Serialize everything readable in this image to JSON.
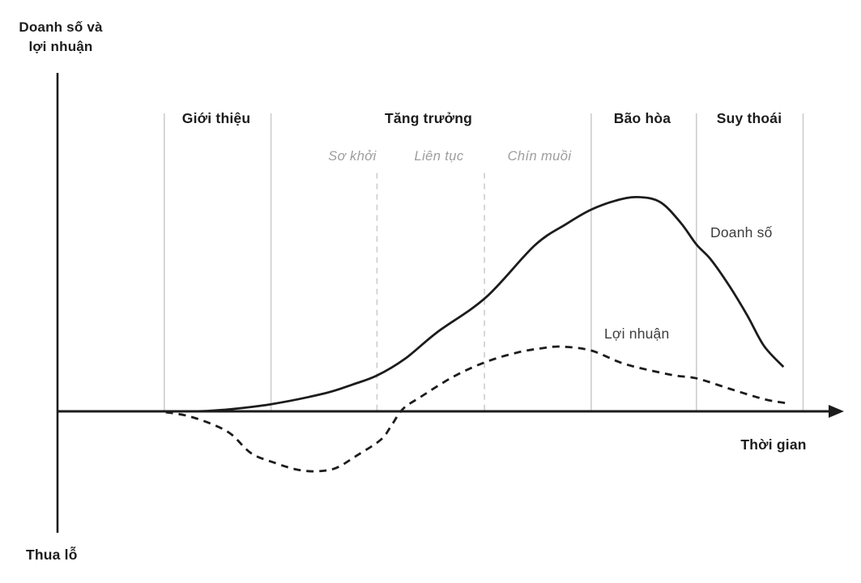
{
  "labels": {
    "y_axis_line1": "Doanh số và",
    "y_axis_line2": "lợi nhuận",
    "loss_label": "Thua lỗ"
  },
  "colors": {
    "text": "#1c1c1c",
    "muted_text": "#9d9d9d",
    "divider": "#cdcdcd",
    "axis": "#1c1c1c",
    "curve": "#1c1c1c",
    "background": "#ffffff"
  },
  "chart_data": {
    "type": "line",
    "title": "",
    "xlabel": "Thời gian",
    "ylabel": "Doanh số và lợi nhuận",
    "below_axis_label": "Thua lỗ",
    "axis": {
      "x_range": [
        0,
        100
      ],
      "y_range": [
        -41,
        114
      ],
      "zero_line": 0,
      "grid": false,
      "numeric_ticks": false
    },
    "legend": {
      "position": "inline-curve-labels"
    },
    "phases": [
      {
        "label": "Giới thiệu",
        "t_start": 13.6,
        "t_end": 27.2
      },
      {
        "label": "Tăng trưởng",
        "t_start": 27.2,
        "t_end": 68.0,
        "sub_phases": [
          {
            "label": "Sơ khởi",
            "t_start": 27.2,
            "t_end": 40.7
          },
          {
            "label": "Liên tục",
            "t_start": 40.7,
            "t_end": 54.4
          },
          {
            "label": "Chín muồi",
            "t_start": 54.4,
            "t_end": 68.0
          }
        ]
      },
      {
        "label": "Bão hòa",
        "t_start": 68.0,
        "t_end": 81.4
      },
      {
        "label": "Suy thoái",
        "t_start": 81.4,
        "t_end": 95.0
      }
    ],
    "dividers": {
      "solid_t": [
        13.6,
        27.2,
        68.0,
        81.4,
        95.0
      ],
      "dashed_t": [
        40.7,
        54.4
      ],
      "top_v": {
        "solid": 100,
        "dashed": 80
      }
    },
    "series": [
      {
        "name": "Doanh số",
        "style": "solid",
        "points": [
          [
            13.8,
            0
          ],
          [
            17.4,
            0
          ],
          [
            21.1,
            0.5
          ],
          [
            27.2,
            2.4
          ],
          [
            34.0,
            6.0
          ],
          [
            37.6,
            9.0
          ],
          [
            40.7,
            12.0
          ],
          [
            44.3,
            17.7
          ],
          [
            48.4,
            26.6
          ],
          [
            54.6,
            38.3
          ],
          [
            60.8,
            55.7
          ],
          [
            64.9,
            63.0
          ],
          [
            68.0,
            67.7
          ],
          [
            71.1,
            70.7
          ],
          [
            73.9,
            71.9
          ],
          [
            76.8,
            70.2
          ],
          [
            79.4,
            63.3
          ],
          [
            81.4,
            56.0
          ],
          [
            83.2,
            51.1
          ],
          [
            85.6,
            42.1
          ],
          [
            87.9,
            32.1
          ],
          [
            90.0,
            22.0
          ],
          [
            92.5,
            14.9
          ]
        ]
      },
      {
        "name": "Lợi nhuận",
        "style": "dashed",
        "points": [
          [
            13.8,
            -0.3
          ],
          [
            16.4,
            -1.4
          ],
          [
            19.5,
            -4.1
          ],
          [
            22.1,
            -7.6
          ],
          [
            24.7,
            -14.1
          ],
          [
            27.8,
            -17.4
          ],
          [
            30.6,
            -19.6
          ],
          [
            33.1,
            -20.1
          ],
          [
            35.5,
            -19.0
          ],
          [
            38.1,
            -14.9
          ],
          [
            41.2,
            -9.5
          ],
          [
            42.6,
            -4.5
          ],
          [
            44.0,
            0.8
          ],
          [
            46.3,
            4.9
          ],
          [
            50.5,
            11.7
          ],
          [
            54.6,
            16.6
          ],
          [
            58.7,
            19.8
          ],
          [
            61.8,
            21.2
          ],
          [
            64.2,
            21.7
          ],
          [
            68.0,
            20.4
          ],
          [
            72.4,
            15.8
          ],
          [
            78.3,
            12.2
          ],
          [
            81.4,
            11.1
          ],
          [
            85.6,
            7.6
          ],
          [
            90.0,
            4.1
          ],
          [
            93.0,
            2.7
          ]
        ]
      }
    ]
  }
}
